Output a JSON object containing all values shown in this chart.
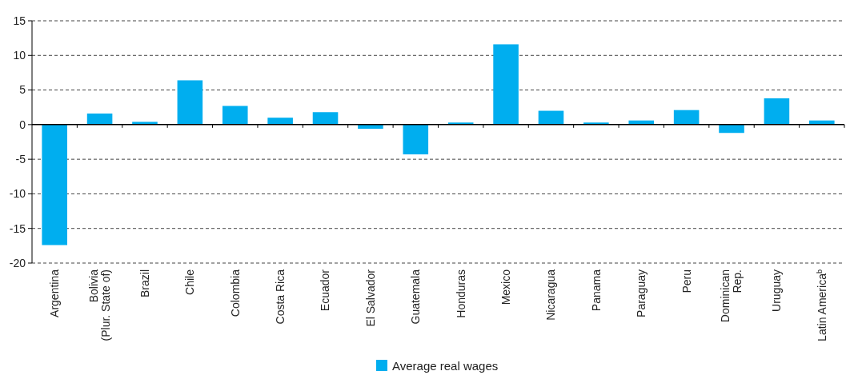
{
  "chart_data": {
    "type": "bar",
    "categories": [
      "Argentina",
      "Bolivia\n(Plur. State of)",
      "Brazil",
      "Chile",
      "Colombia",
      "Costa Rica",
      "Ecuador",
      "El Salvador",
      "Guatemala",
      "Honduras",
      "Mexico",
      "Nicaragua",
      "Panama",
      "Paraguay",
      "Peru",
      "Dominican\nRep.",
      "Uruguay",
      "Latin America$^{b}$"
    ],
    "series": [
      {
        "name": "Average real wages",
        "color": "#00aeef",
        "values": [
          -17.4,
          1.6,
          0.4,
          6.4,
          2.7,
          1.0,
          1.8,
          -0.6,
          -4.3,
          0.3,
          11.6,
          2.0,
          0.3,
          0.6,
          2.1,
          -1.2,
          3.8,
          0.6
        ]
      }
    ],
    "ylim": [
      -20,
      15
    ],
    "yticks": [
      -20,
      -15,
      -10,
      -5,
      0,
      5,
      10,
      15
    ],
    "grid": "y",
    "legend": "bottom"
  }
}
